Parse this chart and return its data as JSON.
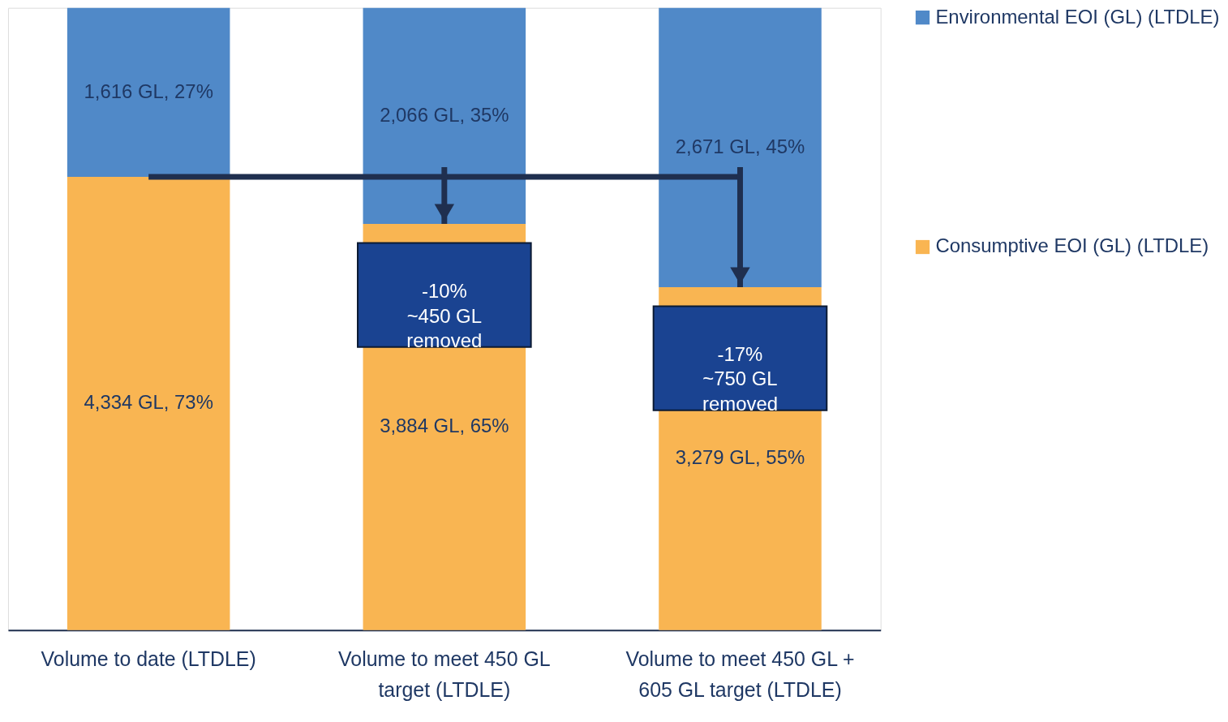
{
  "chart_data": {
    "type": "bar",
    "stacked": true,
    "categories": [
      "Volume to date (LTDLE)",
      "Volume to meet 450 GL target (LTDLE)",
      "Volume to meet 450 GL + 605 GL target (LTDLE)"
    ],
    "series": [
      {
        "name": "Consumptive EOI (GL) (LTDLE)",
        "color": "#f9b552",
        "values": [
          4334,
          3884,
          3279
        ],
        "value_labels": [
          "4,334 GL, 73%",
          "3,884 GL, 65%",
          "3,279 GL, 55%"
        ]
      },
      {
        "name": "Environmental EOI (GL) (LTDLE)",
        "color": "#5089c8",
        "values": [
          1616,
          2066,
          2671
        ],
        "value_labels": [
          "1,616 GL, 27%",
          "2,066 GL, 35%",
          "2,671 GL, 45%"
        ]
      }
    ],
    "annotations": [
      "-10%\n~450 GL\nremoved",
      "-17%\n~750 GL\nremoved"
    ],
    "legend": "right"
  }
}
